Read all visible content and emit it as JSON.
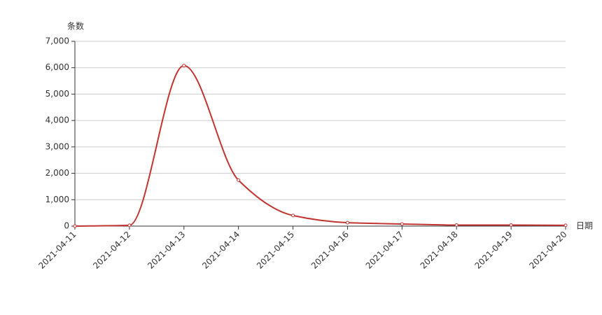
{
  "chart_data": {
    "type": "line",
    "x_axis_name": "日期",
    "y_axis_name": "条数",
    "x": [
      "2021-04-11",
      "2021-04-12",
      "2021-04-13",
      "2021-04-14",
      "2021-04-15",
      "2021-04-16",
      "2021-04-17",
      "2021-04-18",
      "2021-04-19",
      "2021-04-20"
    ],
    "series": [
      {
        "color": "#c23531",
        "values": [
          0,
          30,
          6080,
          1740,
          400,
          130,
          80,
          40,
          40,
          30
        ]
      }
    ],
    "ylim": [
      0,
      7000
    ],
    "yticks": [
      0,
      {
        "value": 1000,
        "label": "1,000"
      },
      {
        "value": 2000,
        "label": "2,000"
      },
      {
        "value": 3000,
        "label": "3,000"
      },
      {
        "value": 4000,
        "label": "4,000"
      },
      {
        "value": 5000,
        "label": "5,000"
      },
      {
        "value": 6000,
        "label": "6,000"
      },
      {
        "value": 7000,
        "label": "7,000"
      }
    ],
    "grid": true
  }
}
